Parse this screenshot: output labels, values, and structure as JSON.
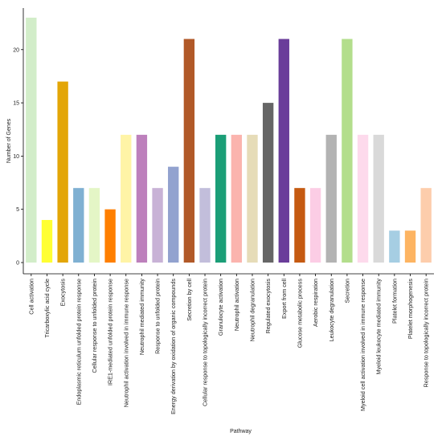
{
  "chart_data": {
    "type": "bar",
    "xlabel": "Pathway",
    "ylabel": "Number of Genes",
    "ylim": [
      0,
      23
    ],
    "yticks": [
      0,
      5,
      10,
      15,
      20
    ],
    "grid": false,
    "categories": [
      "Cell activation",
      "Tricarboxylic acid cycle",
      "Exocytosis",
      "Endoplasmic reticulum unfolded protein response",
      "Cellular response to unfolded protein",
      "IRE1-mediated unfolded protein response",
      "Neutrophil activation involved in immune response",
      "Neutrophil mediated immunity",
      "Response to unfolded protein",
      "Energy derivation by oxidation of organic compounds",
      "Secretion by cell",
      "Cellular response to topologically incorrect protein",
      "Granulocyte activation",
      "Neutrophil activation",
      "Neutrophil degranulation",
      "Regulated exocytosis",
      "Export from cell",
      "Glucose metabolic process",
      "Aerobic respiration",
      "Leukocyte degranulation",
      "Secretion",
      "Myeloid cell activation involved in immune response",
      "Myeloid leukocyte mediated immunity",
      "Platelet formation",
      "Platelet morphogenesis",
      "Response to topologically incorrect protein"
    ],
    "values": [
      23,
      4,
      17,
      7,
      7,
      5,
      12,
      12,
      7,
      9,
      21,
      7,
      12,
      12,
      12,
      15,
      21,
      7,
      7,
      12,
      21,
      12,
      12,
      3,
      3,
      7
    ],
    "colors": [
      "#d2edc9",
      "#ffff33",
      "#e3a607",
      "#7fb0d2",
      "#e4f6c6",
      "#ff7f00",
      "#fff4a6",
      "#bd80bc",
      "#c8b2d6",
      "#92a2cf",
      "#b15928",
      "#c2bedb",
      "#1b9e77",
      "#fbb4ae",
      "#e6dcb8",
      "#666666",
      "#6a3d9a",
      "#c55a11",
      "#fccde5",
      "#b3b3b3",
      "#b3de8c",
      "#fddaec",
      "#d9d9d9",
      "#a6cee3",
      "#fdb462",
      "#fdcdac"
    ]
  }
}
